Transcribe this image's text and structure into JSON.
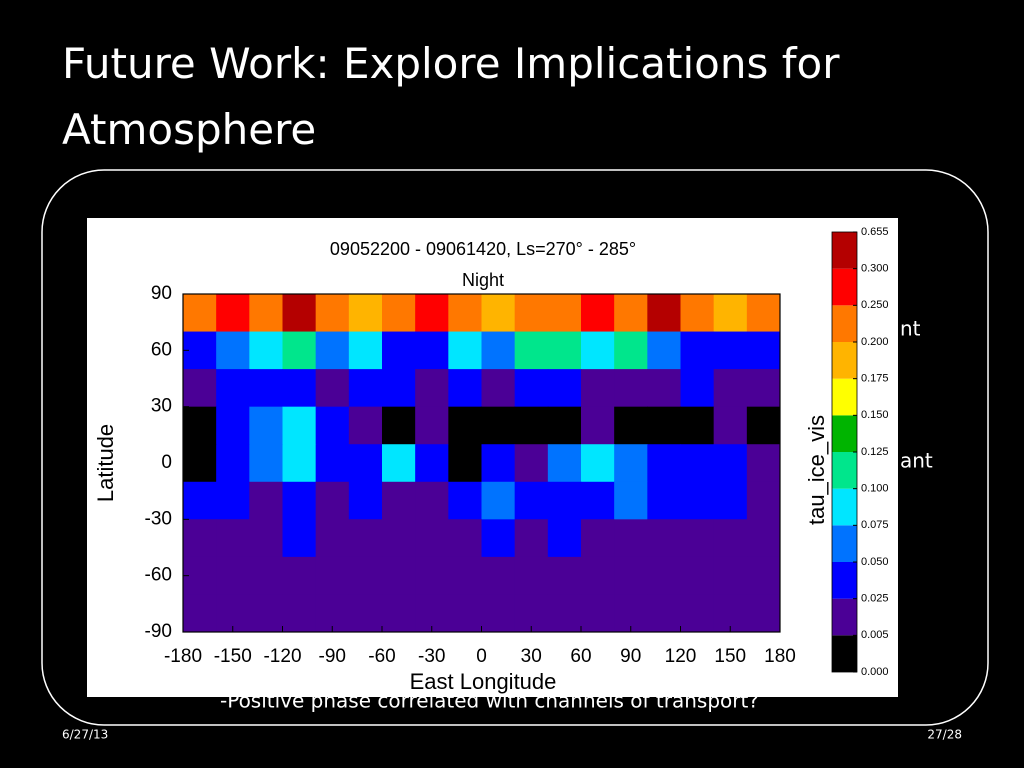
{
  "slide": {
    "title": "Future Work: Explore Implications for Atmosphere",
    "bullets": [
      "nt",
      "ant",
      "-Positive phase correlated with channels of transport?"
    ],
    "date": "6/27/13",
    "page": "27/28"
  },
  "chart_data": {
    "type": "heatmap",
    "title": "09052200 - 09061420,    Ls=270° - 285°",
    "subtitle": "Night",
    "x_label": "East Longitude",
    "y_label": "Latitude",
    "colorbar_label": "tau_ice_vis",
    "xlim": [
      -180,
      180
    ],
    "ylim": [
      -90,
      90
    ],
    "xticks": [
      -180,
      -150,
      -120,
      -90,
      -60,
      -30,
      0,
      30,
      60,
      90,
      120,
      150,
      180
    ],
    "yticks": [
      -90,
      -60,
      -30,
      0,
      30,
      60,
      90
    ],
    "x": [
      -170,
      -150,
      -130,
      -110,
      -90,
      -70,
      -50,
      -30,
      -10,
      10,
      30,
      50,
      70,
      90,
      110,
      130,
      150,
      170
    ],
    "y": [
      80,
      60,
      40,
      20,
      0,
      -20,
      -40,
      -60,
      -80
    ],
    "z": [
      [
        0.2,
        0.25,
        0.2,
        0.3,
        0.2,
        0.18,
        0.2,
        0.25,
        0.2,
        0.18,
        0.2,
        0.2,
        0.25,
        0.2,
        0.3,
        0.2,
        0.18,
        0.2
      ],
      [
        0.03,
        0.06,
        0.08,
        0.1,
        0.06,
        0.08,
        0.04,
        0.03,
        0.08,
        0.06,
        0.1,
        0.12,
        0.08,
        0.1,
        0.06,
        0.04,
        0.03,
        0.03
      ],
      [
        0.02,
        0.04,
        0.03,
        0.03,
        0.02,
        0.03,
        0.04,
        0.02,
        0.03,
        0.02,
        0.04,
        0.03,
        0.02,
        0.01,
        0.02,
        0.03,
        0.02,
        0.02
      ],
      [
        0,
        0.03,
        0.06,
        0.08,
        0.04,
        0.01,
        0,
        0.02,
        0,
        0,
        0,
        0,
        0.01,
        0,
        0,
        0,
        0.01,
        0
      ],
      [
        0,
        0.03,
        0.05,
        0.09,
        0.03,
        0.04,
        0.08,
        0.04,
        0,
        0.03,
        0.02,
        0.05,
        0.08,
        0.06,
        0.03,
        0.03,
        0.04,
        0.01
      ],
      [
        0.03,
        0.04,
        0.02,
        0.03,
        0.02,
        0.04,
        0.02,
        0.01,
        0.03,
        0.06,
        0.03,
        0.04,
        0.04,
        0.05,
        0.03,
        0.04,
        0.03,
        0.02
      ],
      [
        0.01,
        0.02,
        0.01,
        0.03,
        0.02,
        0.01,
        0.02,
        0.01,
        0.02,
        0.03,
        0.01,
        0.03,
        0.02,
        0.01,
        0.02,
        0.01,
        0.02,
        0.01
      ],
      [
        0.01,
        0.02,
        0.01,
        0.02,
        0.01,
        0.02,
        0.01,
        0.02,
        0.01,
        0.01,
        0.02,
        0.01,
        0.02,
        0.01,
        0.01,
        0.02,
        0.01,
        0.01
      ],
      [
        0.01,
        0.01,
        0.01,
        0.01,
        0.01,
        0.01,
        0.01,
        0.01,
        0.01,
        0.01,
        0.01,
        0.01,
        0.01,
        0.01,
        0.01,
        0.01,
        0.01,
        0.01
      ]
    ],
    "colorbar_levels": [
      {
        "value": 0,
        "label": "0.000"
      },
      0.005,
      0.025,
      {
        "value": 0.05,
        "label": "0.050"
      },
      0.075,
      {
        "value": 0.1,
        "label": "0.100"
      },
      0.125,
      {
        "value": 0.15,
        "label": "0.150"
      },
      0.175,
      {
        "value": 0.2,
        "label": "0.200"
      },
      {
        "value": 0.25,
        "label": "0.250"
      },
      {
        "value": 0.3,
        "label": "0.300"
      },
      0.655
    ],
    "colorbar_colors": [
      "#000000",
      "#4b0096",
      "#0000ff",
      "#0073ff",
      "#00e6ff",
      "#00e68c",
      "#00b400",
      "#ffff00",
      "#ffb400",
      "#ff7800",
      "#ff0000",
      "#b40000"
    ]
  }
}
